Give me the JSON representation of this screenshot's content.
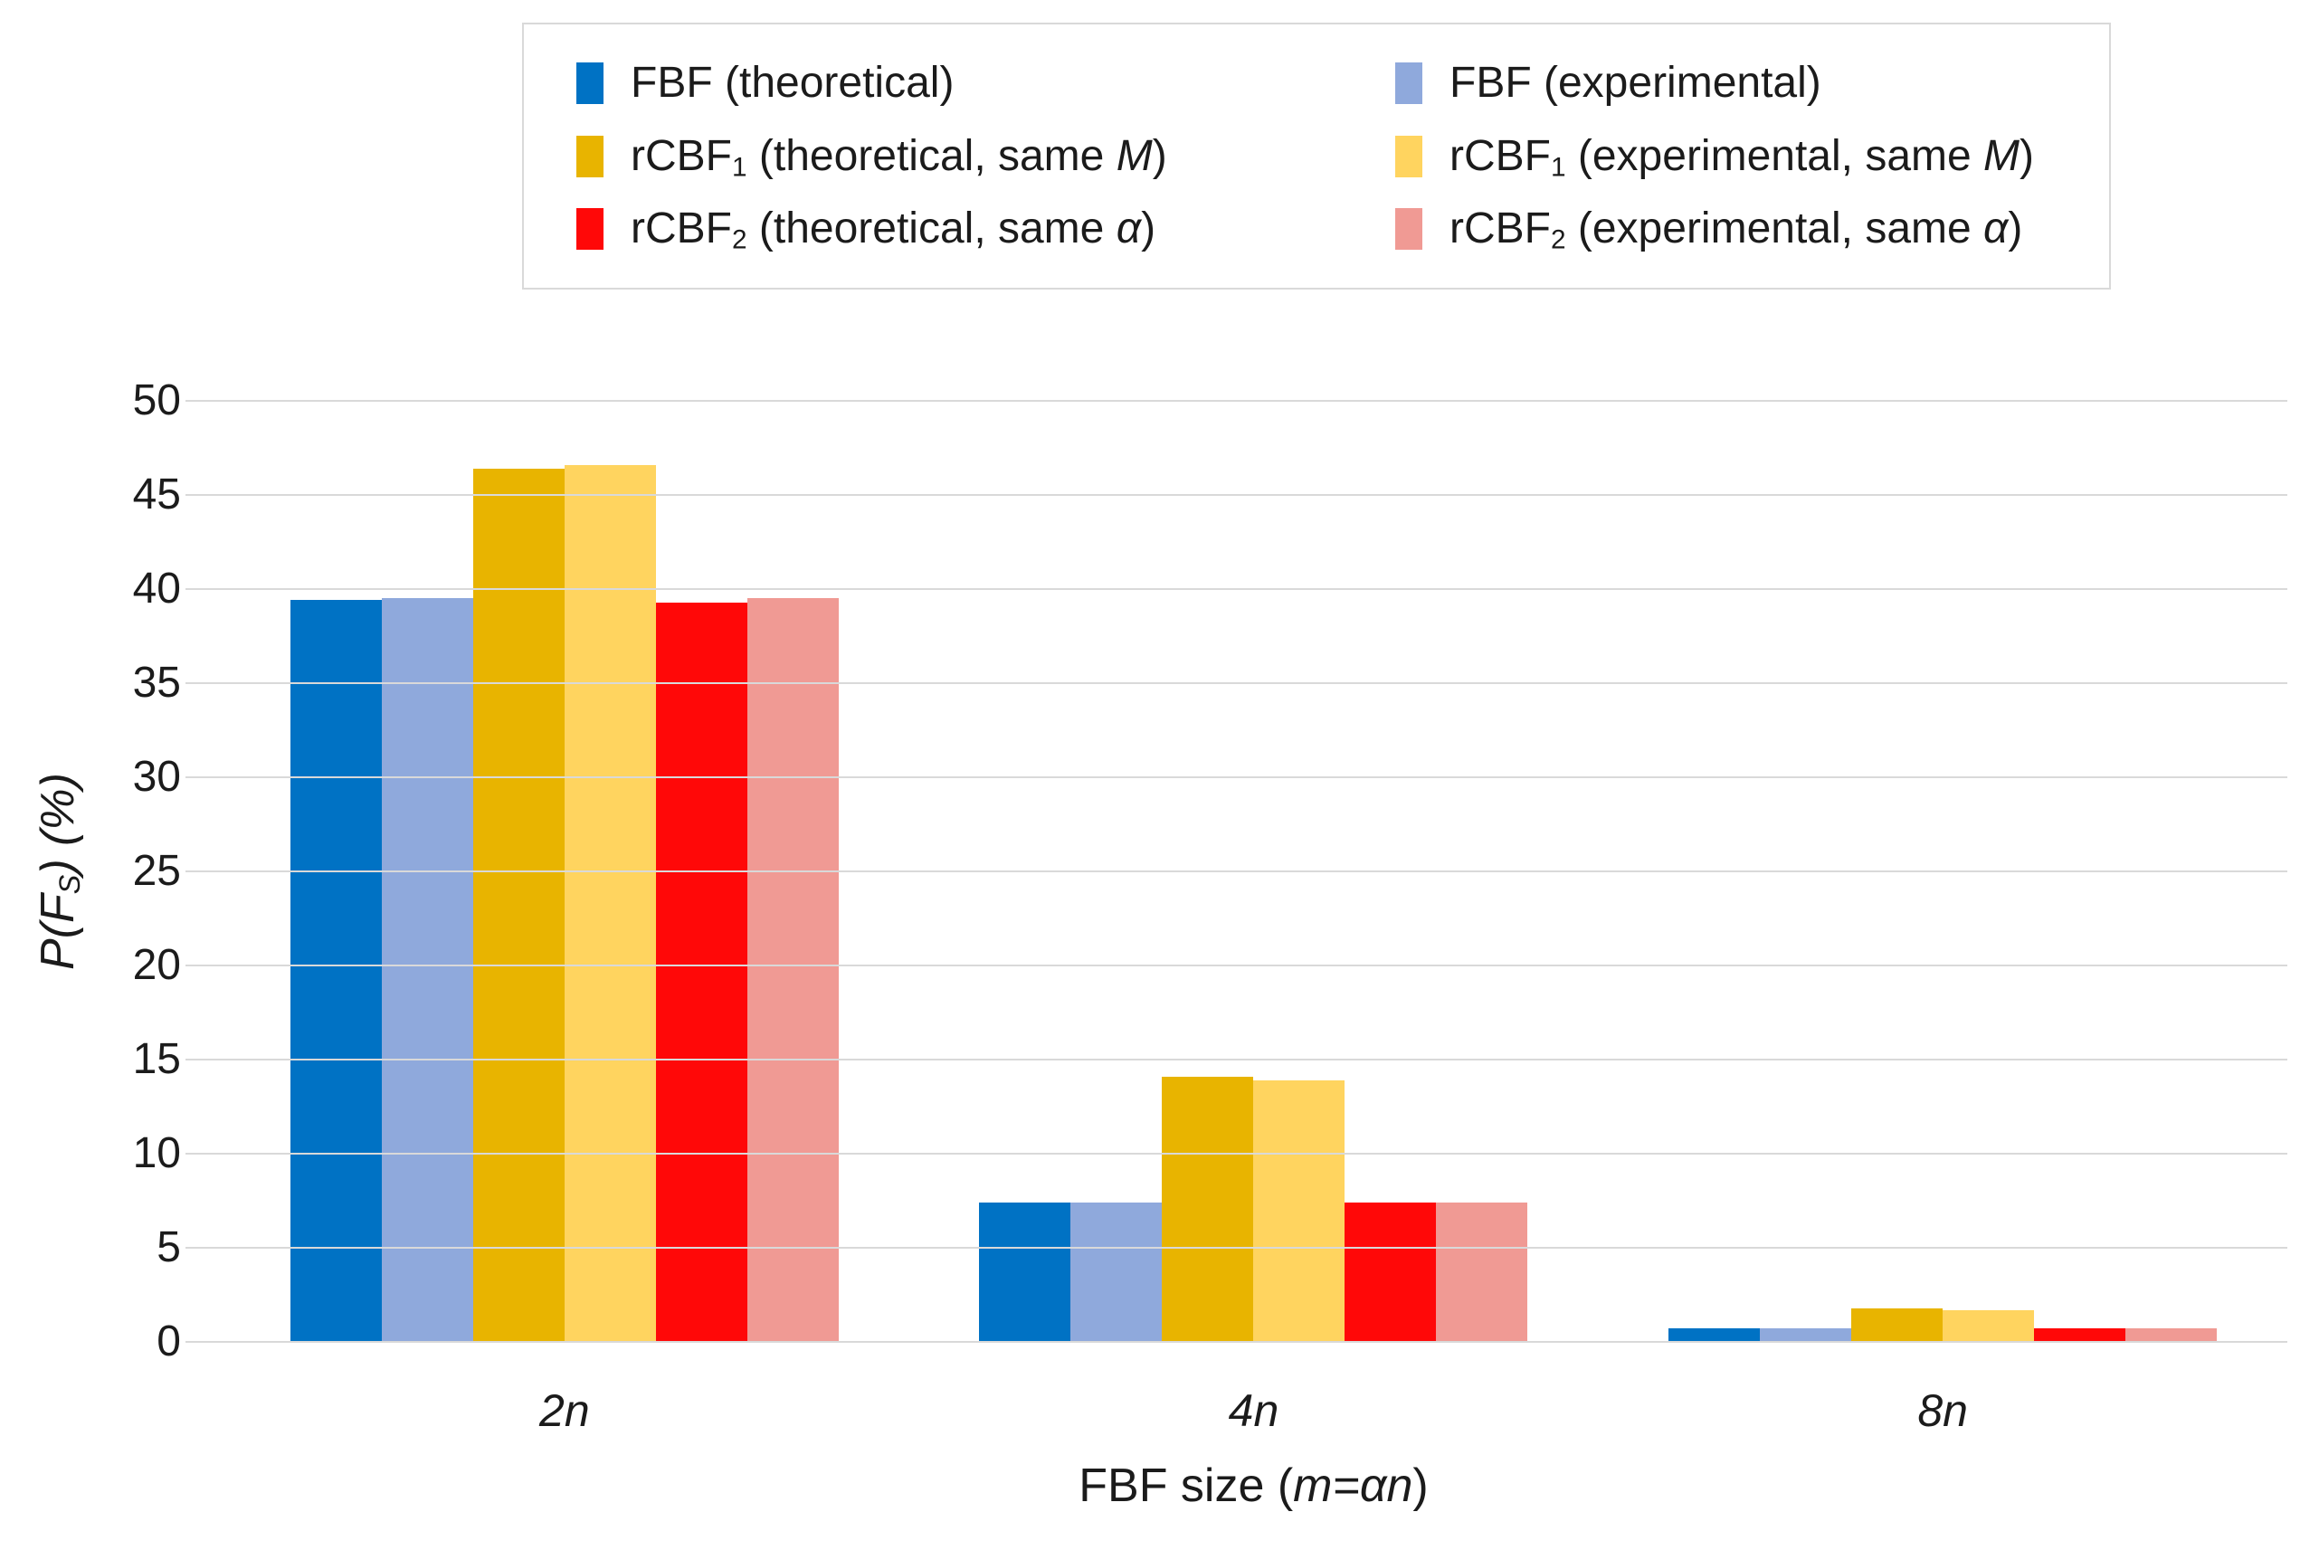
{
  "figure": {
    "background": "#FFFFFF"
  },
  "legend": {
    "items": [
      {
        "prefix": "FBF",
        "sub": "",
        "mid": " (theoretical)",
        "it": "",
        "suffix": "",
        "color": "#0072C4"
      },
      {
        "prefix": "FBF",
        "sub": "",
        "mid": " (experimental)",
        "it": "",
        "suffix": "",
        "color": "#8FA9DC"
      },
      {
        "prefix": "rCBF",
        "sub": "1",
        "mid": " (theoretical, same ",
        "it": "M",
        "suffix": ")",
        "color": "#E8B400"
      },
      {
        "prefix": "rCBF",
        "sub": "1",
        "mid": " (experimental, same ",
        "it": "M",
        "suffix": ")",
        "color": "#FFD45F"
      },
      {
        "prefix": "rCBF",
        "sub": "2",
        "mid": " (theoretical, same ",
        "it": "α",
        "suffix": ")",
        "color": "#FF0808"
      },
      {
        "prefix": "rCBF",
        "sub": "2",
        "mid": " (experimental, same ",
        "it": "α",
        "suffix": ")",
        "color": "#F09A94"
      }
    ]
  },
  "axes": {
    "y_title_main": "P(F",
    "y_title_sub": "S",
    "y_title_suffix": ") (%)",
    "x_title_prefix": "FBF size (",
    "x_title_italic": "m=αn",
    "x_title_suffix": ")",
    "yticks": [
      50,
      45,
      40,
      35,
      30,
      25,
      20,
      15,
      10,
      5,
      0
    ],
    "categories": [
      "2n",
      "4n",
      "8n"
    ]
  },
  "chart_data": {
    "type": "bar",
    "title": "",
    "categories": [
      "2n",
      "4n",
      "8n"
    ],
    "series": [
      {
        "name": "FBF (theoretical)",
        "color": "#0072C4",
        "values": [
          39.4,
          7.4,
          0.7
        ]
      },
      {
        "name": "FBF (experimental)",
        "color": "#8FA9DC",
        "values": [
          39.5,
          7.4,
          0.7
        ]
      },
      {
        "name": "rCBF₁ (theoretical, same M)",
        "color": "#E8B400",
        "values": [
          46.4,
          14.1,
          1.8
        ]
      },
      {
        "name": "rCBF₁ (experimental, same M)",
        "color": "#FFD45F",
        "values": [
          46.6,
          13.9,
          1.7
        ]
      },
      {
        "name": "rCBF₂ (theoretical, same α)",
        "color": "#FF0808",
        "values": [
          39.3,
          7.4,
          0.7
        ]
      },
      {
        "name": "rCBF₂ (experimental, same α)",
        "color": "#F09A94",
        "values": [
          39.5,
          7.4,
          0.7
        ]
      }
    ],
    "xlabel": "FBF size (m=αn)",
    "ylabel": "P(FS) (%)",
    "ylim": [
      0,
      50
    ],
    "ytick_step": 5,
    "grid": true,
    "legend_position": "top",
    "colors": {
      "gridline": "#D9D9D9",
      "legend_border": "#D9D9D9",
      "text": "#1B1B1B"
    }
  }
}
